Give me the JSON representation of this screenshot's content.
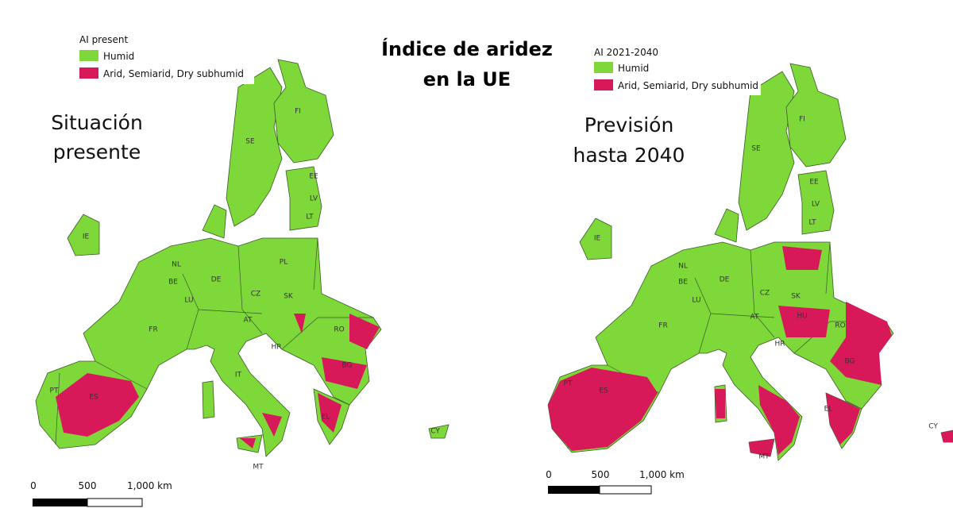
{
  "title": [
    "Índice de aridez",
    "en la UE"
  ],
  "maps": [
    {
      "legend_title": "AI present",
      "legend": [
        "Humid",
        "Arid, Semiarid, Dry subhumid"
      ],
      "caption": [
        "Situación",
        "presente"
      ],
      "labels": [
        "FI",
        "SE",
        "EE",
        "LV",
        "LT",
        "IE",
        "NL",
        "BE",
        "LU",
        "DE",
        "PL",
        "CZ",
        "SK",
        "AT",
        "FR",
        "HR",
        "RO",
        "BG",
        "IT",
        "PT",
        "ES",
        "EL",
        "MT",
        "CY"
      ],
      "scale": [
        "0",
        "500",
        "1,000 km"
      ]
    },
    {
      "legend_title": "AI 2021-2040",
      "legend": [
        "Humid",
        "Arid, Semiarid, Dry subhumid"
      ],
      "caption": [
        "Previsión",
        "hasta 2040"
      ],
      "labels": [
        "FI",
        "SE",
        "EE",
        "LV",
        "LT",
        "IE",
        "NL",
        "BE",
        "LU",
        "DE",
        "CZ",
        "SK",
        "HU",
        "AT",
        "HR",
        "RO",
        "BG",
        "FR",
        "PT",
        "ES",
        "EL",
        "MT",
        "CY"
      ],
      "scale": [
        "0",
        "500",
        "1,000 km"
      ]
    }
  ]
}
